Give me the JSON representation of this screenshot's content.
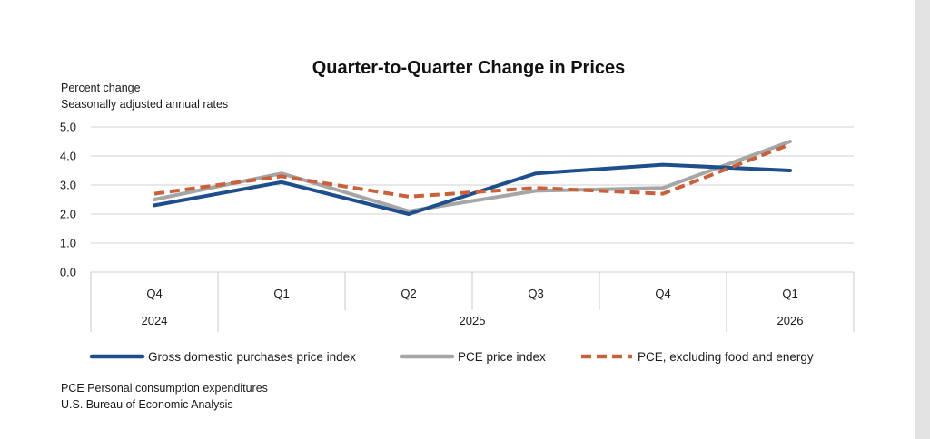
{
  "chart_data": {
    "type": "line",
    "title": "Quarter-to-Quarter Change in Prices",
    "subtitle_lines": [
      "Percent change",
      "Seasonally adjusted annual rates"
    ],
    "categories": [
      "Q4",
      "Q1",
      "Q2",
      "Q3",
      "Q4",
      "Q1"
    ],
    "years": [
      {
        "label": "2024",
        "start": 0,
        "end": 0
      },
      {
        "label": "2025",
        "start": 1,
        "end": 4
      },
      {
        "label": "2026",
        "start": 5,
        "end": 5
      }
    ],
    "ylim": [
      0,
      5
    ],
    "yticks": [
      "0.0",
      "1.0",
      "2.0",
      "3.0",
      "4.0",
      "5.0"
    ],
    "grid": true,
    "legend_position": "bottom",
    "series": [
      {
        "name": "Gross domestic purchases price index",
        "values": [
          2.3,
          3.1,
          2.0,
          3.4,
          3.7,
          3.5
        ],
        "color": "#1f4e8c",
        "style": "solid"
      },
      {
        "name": "PCE price index",
        "values": [
          2.5,
          3.4,
          2.1,
          2.8,
          2.9,
          4.5
        ],
        "color": "#a6a6a6",
        "style": "solid"
      },
      {
        "name": "PCE, excluding food and energy",
        "values": [
          2.7,
          3.3,
          2.6,
          2.9,
          2.7,
          4.4
        ],
        "color": "#c8613c",
        "style": "dashed"
      }
    ],
    "notes": [
      "PCE Personal consumption expenditures",
      "U.S. Bureau of Economic Analysis"
    ]
  }
}
